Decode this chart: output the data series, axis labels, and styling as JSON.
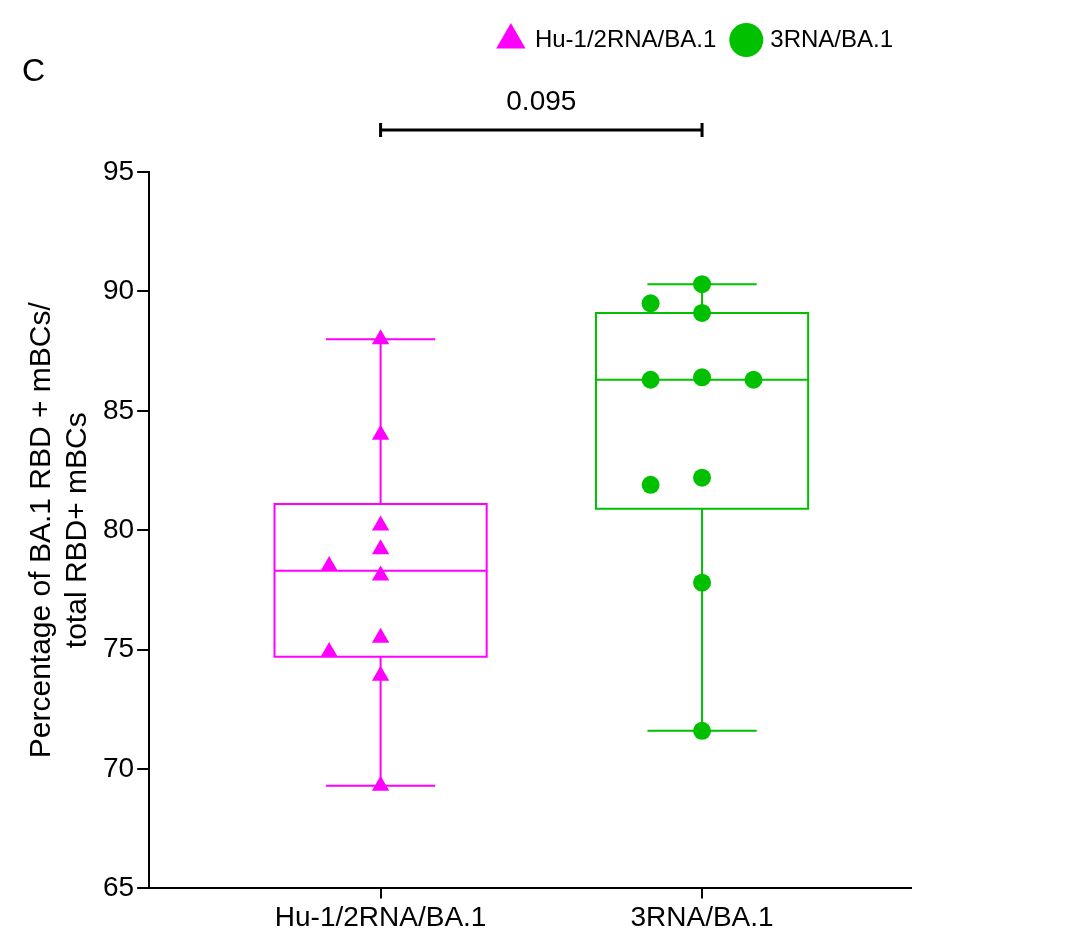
{
  "chart_data": {
    "type": "box",
    "ylabel": "Percentage of BA.1 RBD + mBCs/\ntotal RBD+ mBCs",
    "categories": [
      "Hu-1/2RNA/BA.1",
      "3RNA/BA.1"
    ],
    "ylim": [
      65,
      95
    ],
    "yticks": [
      65,
      70,
      75,
      80,
      85,
      90,
      95
    ],
    "legend": "top right",
    "annotations": [
      "C",
      "0.095"
    ],
    "series": [
      {
        "type": "box",
        "colors": [
          "#ff00ff",
          "#00c000"
        ],
        "boxes": [
          {
            "low": 69.3,
            "q1": 74.7,
            "median": 78.3,
            "q3": 81.1,
            "high": 88.0
          },
          {
            "low": 71.6,
            "q1": 80.9,
            "median": 86.3,
            "q3": 89.1,
            "high": 90.3
          }
        ]
      },
      {
        "type": "scatter",
        "name": "Hu-1/2RNA/BA.1",
        "color": "#ff00ff",
        "marker": "triangle",
        "x": [
          "Hu-1/2RNA/BA.1",
          "Hu-1/2RNA/BA.1",
          "Hu-1/2RNA/BA.1",
          "Hu-1/2RNA/BA.1",
          "Hu-1/2RNA/BA.1",
          "Hu-1/2RNA/BA.1",
          "Hu-1/2RNA/BA.1",
          "Hu-1/2RNA/BA.1",
          "Hu-1/2RNA/BA.1",
          "Hu-1/2RNA/BA.1"
        ],
        "values": [
          88.0,
          84.0,
          80.2,
          79.2,
          78.5,
          78.1,
          75.5,
          74.9,
          73.9,
          69.3
        ]
      },
      {
        "type": "scatter",
        "name": "3RNA/BA.1",
        "color": "#00c000",
        "marker": "circle",
        "x": [
          "3RNA/BA.1",
          "3RNA/BA.1",
          "3RNA/BA.1",
          "3RNA/BA.1",
          "3RNA/BA.1",
          "3RNA/BA.1",
          "3RNA/BA.1",
          "3RNA/BA.1",
          "3RNA/BA.1",
          "3RNA/BA.1"
        ],
        "values": [
          90.3,
          89.5,
          89.1,
          86.4,
          86.3,
          86.3,
          82.2,
          81.9,
          77.8,
          71.6
        ]
      }
    ]
  }
}
